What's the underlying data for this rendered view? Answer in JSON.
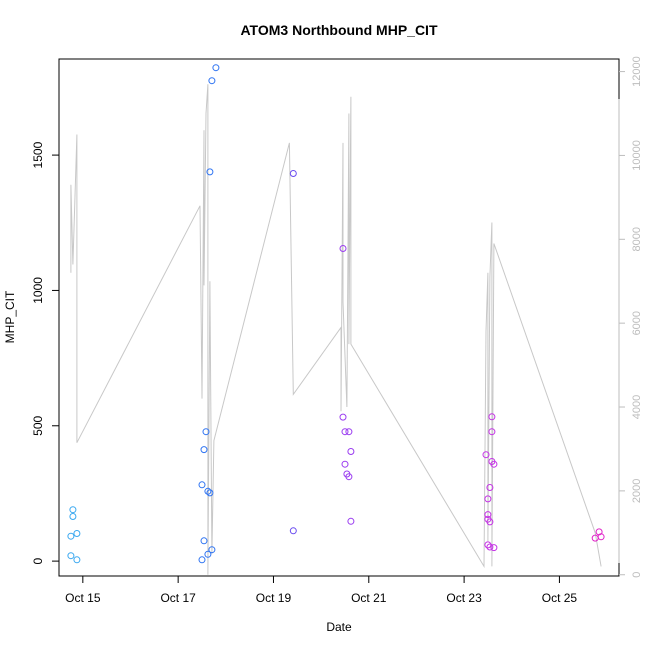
{
  "chart_data": {
    "type": "scatter",
    "title": "ATOM3 Northbound MHP_CIT",
    "xlabel": "Date",
    "ylabel": "MHP_CIT",
    "xlim": [
      "2025-10-14T12:00",
      "2025-10-26T06:00"
    ],
    "ylim": [
      -55,
      1855
    ],
    "y2lim": [
      -30,
      12300
    ],
    "x_ticks": [
      {
        "date": "2025-10-15",
        "label": "Oct 15"
      },
      {
        "date": "2025-10-17",
        "label": "Oct 17"
      },
      {
        "date": "2025-10-19",
        "label": "Oct 19"
      },
      {
        "date": "2025-10-21",
        "label": "Oct 21"
      },
      {
        "date": "2025-10-23",
        "label": "Oct 23"
      },
      {
        "date": "2025-10-25",
        "label": "Oct 25"
      }
    ],
    "y_ticks": [
      {
        "value": 0,
        "label": "0"
      },
      {
        "value": 500,
        "label": "500"
      },
      {
        "value": 1000,
        "label": "1000"
      },
      {
        "value": 1500,
        "label": "1500"
      }
    ],
    "y2_ticks": [
      {
        "value": 0,
        "label": "0"
      },
      {
        "value": 2000,
        "label": "2000"
      },
      {
        "value": 4000,
        "label": "4000"
      },
      {
        "value": 6000,
        "label": "6000"
      },
      {
        "value": 8000,
        "label": "8000"
      },
      {
        "value": 10000,
        "label": "10000"
      },
      {
        "value": 12000,
        "label": "12000"
      }
    ],
    "grid": false,
    "legend": "none",
    "colors": {
      "line": "#c8c8c8",
      "axis": "#000000",
      "axis2": "#bdbdbd"
    },
    "points": [
      {
        "x": "2025-10-14T19:00",
        "y": 190,
        "color": "#3aa8f0"
      },
      {
        "x": "2025-10-14T19:00",
        "y": 165,
        "color": "#3aa8f0"
      },
      {
        "x": "2025-10-14T18:00",
        "y": 92,
        "color": "#3aa8f0"
      },
      {
        "x": "2025-10-14T21:00",
        "y": 102,
        "color": "#3aa8f0"
      },
      {
        "x": "2025-10-14T18:00",
        "y": 20,
        "color": "#3aa8f0"
      },
      {
        "x": "2025-10-14T21:00",
        "y": 5,
        "color": "#3aa8f0"
      },
      {
        "x": "2025-10-17T12:00",
        "y": 5,
        "color": "#2f74f2"
      },
      {
        "x": "2025-10-17T13:00",
        "y": 75,
        "color": "#2f74f2"
      },
      {
        "x": "2025-10-17T12:00",
        "y": 282,
        "color": "#2f74f2"
      },
      {
        "x": "2025-10-17T13:00",
        "y": 412,
        "color": "#2f74f2"
      },
      {
        "x": "2025-10-17T14:00",
        "y": 478,
        "color": "#2f74f2"
      },
      {
        "x": "2025-10-17T15:00",
        "y": 258,
        "color": "#2f74f2"
      },
      {
        "x": "2025-10-17T16:00",
        "y": 252,
        "color": "#2f74f2"
      },
      {
        "x": "2025-10-17T15:00",
        "y": 25,
        "color": "#2f74f2"
      },
      {
        "x": "2025-10-17T17:00",
        "y": 42,
        "color": "#2f74f2"
      },
      {
        "x": "2025-10-17T16:00",
        "y": 1438,
        "color": "#2f74f2"
      },
      {
        "x": "2025-10-17T17:00",
        "y": 1775,
        "color": "#2f74f2"
      },
      {
        "x": "2025-10-17T19:00",
        "y": 1823,
        "color": "#2f74f2"
      },
      {
        "x": "2025-10-19T10:00",
        "y": 1432,
        "color": "#6a4cf0"
      },
      {
        "x": "2025-10-19T10:00",
        "y": 112,
        "color": "#6a4cf0"
      },
      {
        "x": "2025-10-20T11:00",
        "y": 1155,
        "color": "#9a3cf0"
      },
      {
        "x": "2025-10-20T11:00",
        "y": 532,
        "color": "#9a3cf0"
      },
      {
        "x": "2025-10-20T12:00",
        "y": 478,
        "color": "#9a3cf0"
      },
      {
        "x": "2025-10-20T14:00",
        "y": 478,
        "color": "#9a3cf0"
      },
      {
        "x": "2025-10-20T15:00",
        "y": 405,
        "color": "#9a3cf0"
      },
      {
        "x": "2025-10-20T12:00",
        "y": 358,
        "color": "#9a3cf0"
      },
      {
        "x": "2025-10-20T13:00",
        "y": 322,
        "color": "#9a3cf0"
      },
      {
        "x": "2025-10-20T14:00",
        "y": 312,
        "color": "#9a3cf0"
      },
      {
        "x": "2025-10-20T15:00",
        "y": 147,
        "color": "#9a3cf0"
      },
      {
        "x": "2025-10-23T11:00",
        "y": 393,
        "color": "#c532e6"
      },
      {
        "x": "2025-10-23T14:00",
        "y": 533,
        "color": "#c532e6"
      },
      {
        "x": "2025-10-23T14:00",
        "y": 478,
        "color": "#c532e6"
      },
      {
        "x": "2025-10-23T14:00",
        "y": 368,
        "color": "#c532e6"
      },
      {
        "x": "2025-10-23T15:00",
        "y": 358,
        "color": "#c532e6"
      },
      {
        "x": "2025-10-23T13:00",
        "y": 272,
        "color": "#c532e6"
      },
      {
        "x": "2025-10-23T12:00",
        "y": 230,
        "color": "#c532e6"
      },
      {
        "x": "2025-10-23T12:00",
        "y": 172,
        "color": "#c532e6"
      },
      {
        "x": "2025-10-23T12:00",
        "y": 155,
        "color": "#c532e6"
      },
      {
        "x": "2025-10-23T13:00",
        "y": 145,
        "color": "#c532e6"
      },
      {
        "x": "2025-10-23T12:00",
        "y": 60,
        "color": "#c532e6"
      },
      {
        "x": "2025-10-23T13:00",
        "y": 52,
        "color": "#c532e6"
      },
      {
        "x": "2025-10-23T15:00",
        "y": 50,
        "color": "#c532e6"
      },
      {
        "x": "2025-10-25T20:00",
        "y": 108,
        "color": "#e022c8"
      },
      {
        "x": "2025-10-25T21:00",
        "y": 90,
        "color": "#e022c8"
      },
      {
        "x": "2025-10-25T18:00",
        "y": 85,
        "color": "#e022c8"
      }
    ],
    "line_series": {
      "axis": "right",
      "points": [
        {
          "x": "2025-10-14T18:00",
          "y": 7200
        },
        {
          "x": "2025-10-14T18:00",
          "y": 9300
        },
        {
          "x": "2025-10-14T19:00",
          "y": 7400
        },
        {
          "x": "2025-10-14T21:00",
          "y": 10500
        },
        {
          "x": "2025-10-14T21:00",
          "y": 3150
        },
        {
          "x": "2025-10-17T11:00",
          "y": 8800
        },
        {
          "x": "2025-10-17T12:00",
          "y": 4200
        },
        {
          "x": "2025-10-17T13:00",
          "y": 10600
        },
        {
          "x": "2025-10-17T13:00",
          "y": 6900
        },
        {
          "x": "2025-10-17T14:00",
          "y": 11000
        },
        {
          "x": "2025-10-17T15:00",
          "y": 11700
        },
        {
          "x": "2025-10-17T15:00",
          "y": 0
        },
        {
          "x": "2025-10-17T16:00",
          "y": 7000
        },
        {
          "x": "2025-10-17T17:00",
          "y": 500
        },
        {
          "x": "2025-10-17T18:00",
          "y": 3200
        },
        {
          "x": "2025-10-19T08:00",
          "y": 10300
        },
        {
          "x": "2025-10-19T10:00",
          "y": 4300
        },
        {
          "x": "2025-10-20T10:00",
          "y": 5900
        },
        {
          "x": "2025-10-20T10:00",
          "y": 3900
        },
        {
          "x": "2025-10-20T11:00",
          "y": 10300
        },
        {
          "x": "2025-10-20T11:00",
          "y": 6500
        },
        {
          "x": "2025-10-20T13:00",
          "y": 4000
        },
        {
          "x": "2025-10-20T14:00",
          "y": 11000
        },
        {
          "x": "2025-10-20T14:00",
          "y": 5500
        },
        {
          "x": "2025-10-20T15:00",
          "y": 11400
        },
        {
          "x": "2025-10-20T15:00",
          "y": 5500
        },
        {
          "x": "2025-10-23T10:00",
          "y": 200
        },
        {
          "x": "2025-10-23T11:00",
          "y": 5800
        },
        {
          "x": "2025-10-23T12:00",
          "y": 7200
        },
        {
          "x": "2025-10-23T12:00",
          "y": 800
        },
        {
          "x": "2025-10-23T13:00",
          "y": 7100
        },
        {
          "x": "2025-10-23T14:00",
          "y": 8400
        },
        {
          "x": "2025-10-23T14:00",
          "y": 200
        },
        {
          "x": "2025-10-23T15:00",
          "y": 7900
        },
        {
          "x": "2025-10-25T18:00",
          "y": 1000
        },
        {
          "x": "2025-10-25T21:00",
          "y": 200
        }
      ]
    }
  }
}
